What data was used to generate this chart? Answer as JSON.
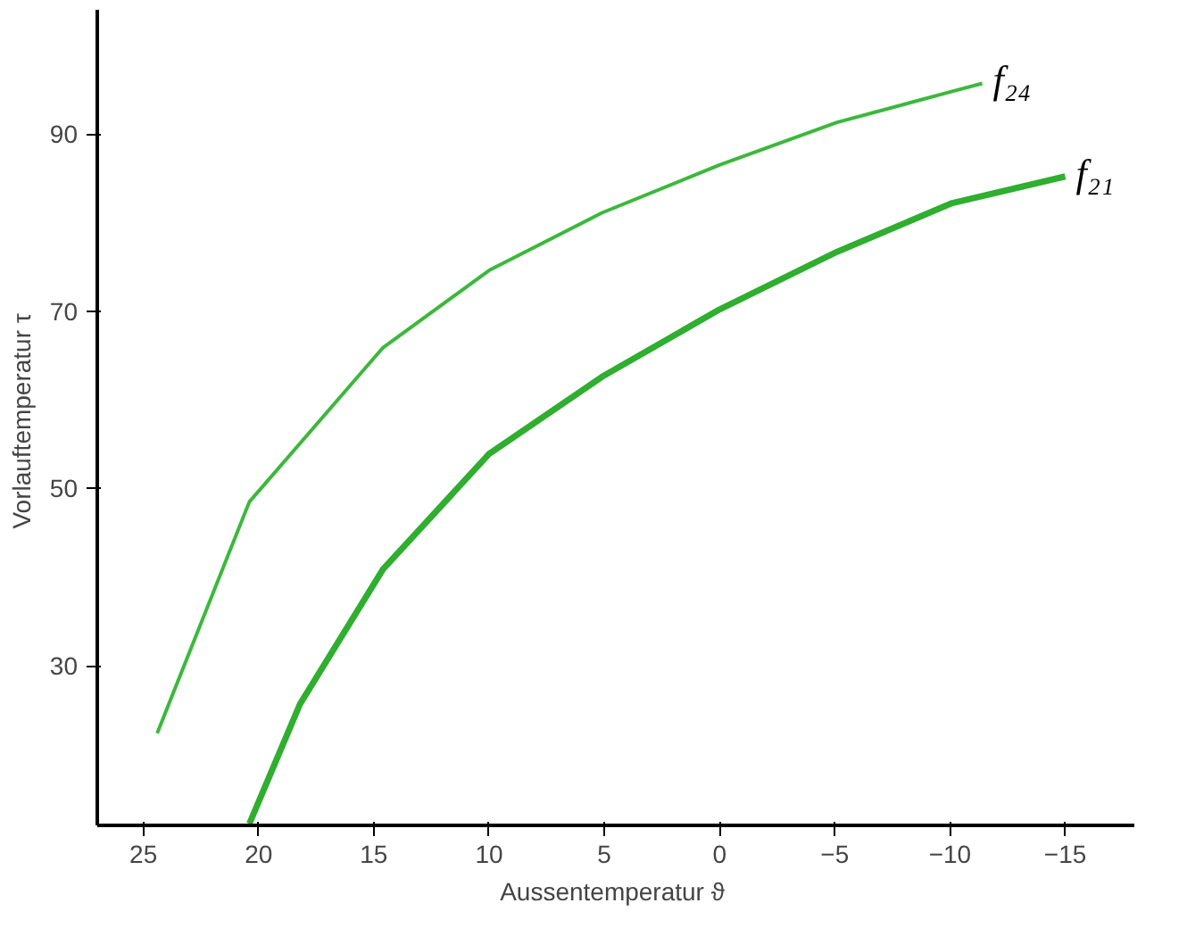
{
  "chart_data": {
    "type": "line",
    "xlabel": "Aussentemperatur  ϑ",
    "ylabel": "Vorlauftemperatur  τ",
    "xlim": [
      27,
      -18
    ],
    "ylim": [
      12,
      104
    ],
    "xticks": [
      25,
      20,
      15,
      10,
      5,
      0,
      -5,
      -10,
      -15
    ],
    "yticks": [
      30,
      50,
      70,
      90
    ],
    "grid": false,
    "marker": "none",
    "line_style": "solid",
    "series": [
      {
        "name": "f₂₄",
        "color": "#3cb83c",
        "x": [
          24.4,
          20.4,
          14.6,
          10,
          5.1,
          0,
          -5.1,
          -10.1,
          -11.4
        ],
        "values": [
          22.4,
          48.5,
          65.9,
          74.6,
          81.1,
          86.5,
          91.3,
          94.8,
          95.7
        ]
      },
      {
        "name": "f₂₁",
        "color": "#2fae2f",
        "x": [
          20.4,
          18.2,
          14.6,
          10,
          5.1,
          0,
          -5.1,
          -10.1,
          -15
        ],
        "values": [
          12.2,
          25.7,
          40.9,
          53.9,
          62.6,
          70.2,
          76.7,
          82.2,
          85.2
        ]
      }
    ]
  }
}
